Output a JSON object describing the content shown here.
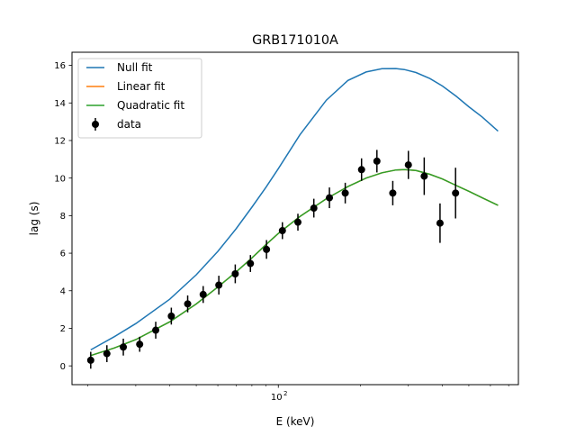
{
  "chart_data": {
    "type": "line",
    "title": "GRB171010A",
    "xlabel": "E (keV)",
    "ylabel": "lag (s)",
    "xscale": "log",
    "xlim": [
      17.5,
      760
    ],
    "ylim": [
      -1,
      16.7
    ],
    "grid": false,
    "legend_position": "top-left",
    "x_tick_major": [
      {
        "value": 100,
        "label": "10",
        "exponent": "2"
      }
    ],
    "x_tick_minor": [
      20,
      30,
      40,
      50,
      60,
      70,
      80,
      90,
      200,
      300,
      400,
      500,
      600,
      700
    ],
    "y_ticks": [
      0,
      2,
      4,
      6,
      8,
      10,
      12,
      14,
      16
    ],
    "series": [
      {
        "name": "Null fit",
        "kind": "line",
        "color": "#1f77b4",
        "x": [
          20.5,
          25,
          30,
          40,
          50,
          60,
          70,
          80,
          90,
          100,
          120,
          150,
          180,
          210,
          240,
          270,
          290,
          320,
          360,
          400,
          450,
          500,
          560,
          640
        ],
        "y": [
          0.85,
          1.55,
          2.25,
          3.55,
          4.85,
          6.1,
          7.3,
          8.45,
          9.5,
          10.5,
          12.3,
          14.15,
          15.2,
          15.65,
          15.82,
          15.83,
          15.78,
          15.62,
          15.3,
          14.9,
          14.35,
          13.8,
          13.25,
          12.5
        ]
      },
      {
        "name": "Linear fit",
        "kind": "line",
        "color": "#ff7f0e",
        "x": [
          20.5,
          25,
          30,
          40,
          50,
          60,
          70,
          80,
          90,
          100,
          120,
          150,
          180,
          210,
          240,
          270,
          290,
          320,
          360,
          400,
          450,
          500,
          560,
          640
        ],
        "y": [
          0.55,
          0.95,
          1.4,
          2.35,
          3.3,
          4.2,
          5.0,
          5.75,
          6.45,
          7.05,
          7.95,
          8.9,
          9.55,
          10.0,
          10.28,
          10.43,
          10.45,
          10.4,
          10.2,
          9.95,
          9.6,
          9.3,
          8.95,
          8.55
        ]
      },
      {
        "name": "Quadratic fit",
        "kind": "line",
        "color": "#2ca02c",
        "x": [
          20.5,
          25,
          30,
          40,
          50,
          60,
          70,
          80,
          90,
          100,
          120,
          150,
          180,
          210,
          240,
          270,
          290,
          320,
          360,
          400,
          450,
          500,
          560,
          640
        ],
        "y": [
          0.55,
          0.95,
          1.4,
          2.35,
          3.3,
          4.2,
          5.0,
          5.75,
          6.45,
          7.05,
          7.95,
          8.9,
          9.55,
          10.0,
          10.28,
          10.43,
          10.45,
          10.4,
          10.2,
          9.95,
          9.6,
          9.3,
          8.95,
          8.55
        ]
      },
      {
        "name": "data",
        "kind": "errorbar",
        "color": "#000000",
        "points": [
          {
            "x": 20.5,
            "y": 0.3,
            "err": 0.45
          },
          {
            "x": 23.5,
            "y": 0.65,
            "err": 0.45
          },
          {
            "x": 27,
            "y": 1.0,
            "err": 0.45
          },
          {
            "x": 31,
            "y": 1.15,
            "err": 0.4
          },
          {
            "x": 35.5,
            "y": 1.9,
            "err": 0.45
          },
          {
            "x": 40.5,
            "y": 2.65,
            "err": 0.45
          },
          {
            "x": 46.5,
            "y": 3.3,
            "err": 0.45
          },
          {
            "x": 53,
            "y": 3.8,
            "err": 0.45
          },
          {
            "x": 60.5,
            "y": 4.3,
            "err": 0.5
          },
          {
            "x": 69.5,
            "y": 4.9,
            "err": 0.5
          },
          {
            "x": 79,
            "y": 5.45,
            "err": 0.45
          },
          {
            "x": 90.5,
            "y": 6.2,
            "err": 0.5
          },
          {
            "x": 103.5,
            "y": 7.2,
            "err": 0.45
          },
          {
            "x": 118,
            "y": 7.65,
            "err": 0.45
          },
          {
            "x": 135,
            "y": 8.4,
            "err": 0.5
          },
          {
            "x": 154,
            "y": 8.95,
            "err": 0.55
          },
          {
            "x": 176,
            "y": 9.2,
            "err": 0.55
          },
          {
            "x": 202,
            "y": 10.45,
            "err": 0.6
          },
          {
            "x": 230,
            "y": 10.9,
            "err": 0.6
          },
          {
            "x": 263,
            "y": 9.2,
            "err": 0.65
          },
          {
            "x": 300,
            "y": 10.7,
            "err": 0.75
          },
          {
            "x": 343,
            "y": 10.1,
            "err": 1.0
          },
          {
            "x": 392,
            "y": 7.6,
            "err": 1.05
          },
          {
            "x": 447,
            "y": 9.2,
            "err": 1.35
          }
        ]
      }
    ]
  }
}
